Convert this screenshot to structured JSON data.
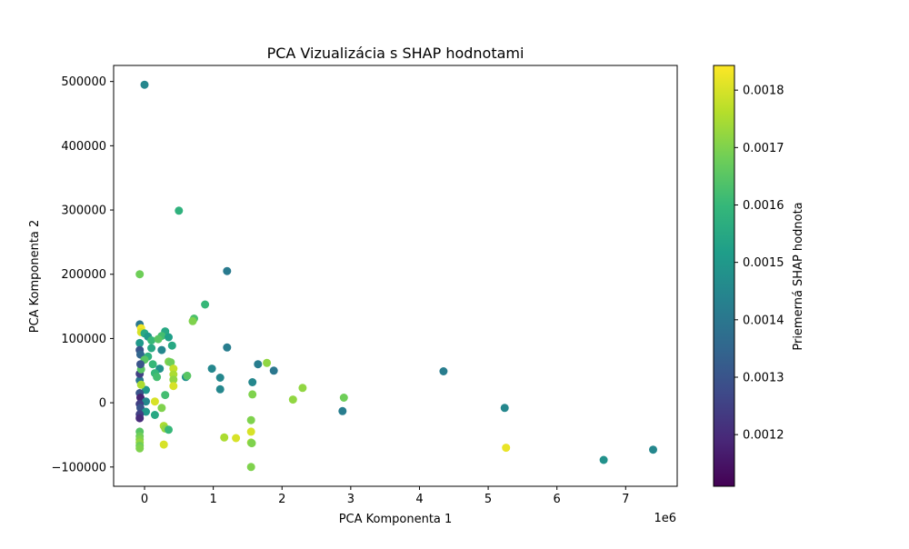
{
  "chart_data": {
    "type": "scatter",
    "title": "PCA Vizualizácia s SHAP hodnotami",
    "xlabel": "PCA Komponenta 1",
    "ylabel": "PCA Komponenta 2",
    "x_offset_label": "1e6",
    "xlim": [
      -0.45,
      7.75
    ],
    "ylim": [
      -130000,
      525000
    ],
    "x_ticks": [
      0,
      1,
      2,
      3,
      4,
      5,
      6,
      7
    ],
    "x_tick_labels": [
      "0",
      "1",
      "2",
      "3",
      "4",
      "5",
      "6",
      "7"
    ],
    "y_ticks": [
      -100000,
      0,
      100000,
      200000,
      300000,
      400000,
      500000
    ],
    "y_tick_labels": [
      "−100000",
      "0",
      "100000",
      "200000",
      "300000",
      "400000",
      "500000"
    ],
    "grid": false,
    "colormap": "viridis",
    "colorbar": {
      "label": "Priemerná SHAP hodnota",
      "range": [
        0.00111,
        0.001843
      ],
      "ticks": [
        0.0012,
        0.0013,
        0.0014,
        0.0015,
        0.0016,
        0.0017,
        0.0018
      ],
      "tick_labels": [
        "0.0012",
        "0.0013",
        "0.0014",
        "0.0015",
        "0.0016",
        "0.0017",
        "0.0018"
      ]
    },
    "points": [
      {
        "x": 0.0,
        "y": 495000,
        "c": 0.00145
      },
      {
        "x": 0.5,
        "y": 299000,
        "c": 0.00158
      },
      {
        "x": -0.07,
        "y": 200000,
        "c": 0.00168
      },
      {
        "x": 1.2,
        "y": 205000,
        "c": 0.00141
      },
      {
        "x": 0.88,
        "y": 153000,
        "c": 0.0016
      },
      {
        "x": 0.72,
        "y": 131000,
        "c": 0.00163
      },
      {
        "x": 0.7,
        "y": 127000,
        "c": 0.0017
      },
      {
        "x": -0.07,
        "y": 122000,
        "c": 0.0014
      },
      {
        "x": -0.05,
        "y": 116000,
        "c": 0.00183
      },
      {
        "x": -0.05,
        "y": 110000,
        "c": 0.0018
      },
      {
        "x": 0.0,
        "y": 108000,
        "c": 0.00155
      },
      {
        "x": 0.05,
        "y": 103000,
        "c": 0.0015
      },
      {
        "x": 0.1,
        "y": 97000,
        "c": 0.0016
      },
      {
        "x": 0.3,
        "y": 111000,
        "c": 0.00155
      },
      {
        "x": 0.25,
        "y": 104000,
        "c": 0.00162
      },
      {
        "x": 0.2,
        "y": 99000,
        "c": 0.00165
      },
      {
        "x": 0.35,
        "y": 102000,
        "c": 0.00152
      },
      {
        "x": 0.4,
        "y": 89000,
        "c": 0.00155
      },
      {
        "x": 0.25,
        "y": 82000,
        "c": 0.00145
      },
      {
        "x": 0.1,
        "y": 85000,
        "c": 0.00155
      },
      {
        "x": -0.07,
        "y": 93000,
        "c": 0.0015
      },
      {
        "x": -0.07,
        "y": 82000,
        "c": 0.0013
      },
      {
        "x": -0.06,
        "y": 75000,
        "c": 0.00135
      },
      {
        "x": 0.05,
        "y": 72000,
        "c": 0.00158
      },
      {
        "x": 0.0,
        "y": 67000,
        "c": 0.00165
      },
      {
        "x": 1.2,
        "y": 86000,
        "c": 0.00142
      },
      {
        "x": 1.65,
        "y": 60000,
        "c": 0.00142
      },
      {
        "x": 1.78,
        "y": 62000,
        "c": 0.00172
      },
      {
        "x": 1.88,
        "y": 50000,
        "c": 0.0014
      },
      {
        "x": 0.35,
        "y": 64000,
        "c": 0.0017
      },
      {
        "x": 0.38,
        "y": 63000,
        "c": 0.00168
      },
      {
        "x": 0.12,
        "y": 60000,
        "c": 0.0016
      },
      {
        "x": 0.22,
        "y": 53000,
        "c": 0.00148
      },
      {
        "x": 0.42,
        "y": 53000,
        "c": 0.00178
      },
      {
        "x": 0.98,
        "y": 53000,
        "c": 0.00145
      },
      {
        "x": 0.42,
        "y": 44000,
        "c": 0.00175
      },
      {
        "x": 0.15,
        "y": 46000,
        "c": 0.0016
      },
      {
        "x": 0.18,
        "y": 40000,
        "c": 0.00162
      },
      {
        "x": 0.6,
        "y": 40000,
        "c": 0.00148
      },
      {
        "x": 0.62,
        "y": 42000,
        "c": 0.00165
      },
      {
        "x": 1.1,
        "y": 39000,
        "c": 0.00145
      },
      {
        "x": 0.42,
        "y": 36000,
        "c": 0.00172
      },
      {
        "x": 1.57,
        "y": 32000,
        "c": 0.00145
      },
      {
        "x": 0.42,
        "y": 26000,
        "c": 0.0018
      },
      {
        "x": 2.3,
        "y": 23000,
        "c": 0.00172
      },
      {
        "x": 1.1,
        "y": 21000,
        "c": 0.00145
      },
      {
        "x": 0.02,
        "y": 20000,
        "c": 0.0015
      },
      {
        "x": -0.07,
        "y": 35000,
        "c": 0.0014
      },
      {
        "x": -0.07,
        "y": 45000,
        "c": 0.00125
      },
      {
        "x": -0.05,
        "y": 52000,
        "c": 0.00165
      },
      {
        "x": -0.06,
        "y": 60000,
        "c": 0.0013
      },
      {
        "x": -0.05,
        "y": 28000,
        "c": 0.00175
      },
      {
        "x": -0.07,
        "y": 15000,
        "c": 0.0013
      },
      {
        "x": -0.06,
        "y": 8000,
        "c": 0.00118
      },
      {
        "x": 0.3,
        "y": 12000,
        "c": 0.00162
      },
      {
        "x": 1.57,
        "y": 13000,
        "c": 0.0017
      },
      {
        "x": 2.9,
        "y": 8000,
        "c": 0.00168
      },
      {
        "x": 2.16,
        "y": 5000,
        "c": 0.00172
      },
      {
        "x": 0.15,
        "y": 2000,
        "c": 0.0018
      },
      {
        "x": 0.02,
        "y": 2000,
        "c": 0.00145
      },
      {
        "x": -0.07,
        "y": -2000,
        "c": 0.00125
      },
      {
        "x": -0.06,
        "y": -8000,
        "c": 0.0013
      },
      {
        "x": 0.25,
        "y": -8000,
        "c": 0.0017
      },
      {
        "x": 0.02,
        "y": -14000,
        "c": 0.0015
      },
      {
        "x": -0.07,
        "y": -18000,
        "c": 0.00125
      },
      {
        "x": 0.15,
        "y": -19000,
        "c": 0.00155
      },
      {
        "x": -0.07,
        "y": -24000,
        "c": 0.0012
      },
      {
        "x": 0.28,
        "y": -36000,
        "c": 0.00175
      },
      {
        "x": 0.3,
        "y": -40000,
        "c": 0.00172
      },
      {
        "x": 0.35,
        "y": -42000,
        "c": 0.0016
      },
      {
        "x": 1.55,
        "y": -27000,
        "c": 0.0017
      },
      {
        "x": 1.55,
        "y": -45000,
        "c": 0.0018
      },
      {
        "x": 1.16,
        "y": -54000,
        "c": 0.00175
      },
      {
        "x": 1.33,
        "y": -55000,
        "c": 0.0018
      },
      {
        "x": 1.55,
        "y": -62000,
        "c": 0.00175
      },
      {
        "x": 1.56,
        "y": -63000,
        "c": 0.0017
      },
      {
        "x": 0.28,
        "y": -65000,
        "c": 0.0018
      },
      {
        "x": -0.07,
        "y": -45000,
        "c": 0.00165
      },
      {
        "x": -0.07,
        "y": -52000,
        "c": 0.00168
      },
      {
        "x": -0.07,
        "y": -57000,
        "c": 0.0017
      },
      {
        "x": -0.07,
        "y": -62000,
        "c": 0.00172
      },
      {
        "x": -0.07,
        "y": -67000,
        "c": 0.00168
      },
      {
        "x": -0.07,
        "y": -71000,
        "c": 0.0017
      },
      {
        "x": 1.55,
        "y": -100000,
        "c": 0.0017
      },
      {
        "x": 2.88,
        "y": -13000,
        "c": 0.00142
      },
      {
        "x": 4.35,
        "y": 49000,
        "c": 0.00142
      },
      {
        "x": 5.24,
        "y": -8000,
        "c": 0.00145
      },
      {
        "x": 5.26,
        "y": -70000,
        "c": 0.00182
      },
      {
        "x": 6.68,
        "y": -89000,
        "c": 0.00148
      },
      {
        "x": 7.4,
        "y": -73000,
        "c": 0.00145
      }
    ]
  }
}
